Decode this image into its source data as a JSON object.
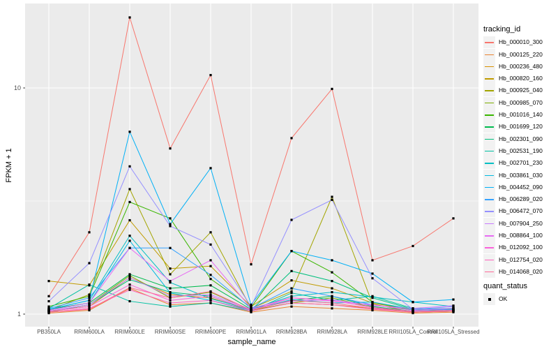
{
  "figure": {
    "background": "#FFFFFF",
    "panel_bg": "#EBEBEB",
    "grid_color": "#FFFFFF",
    "tick_color": "#333333",
    "tick_label_color": "#4D4D4D"
  },
  "legend": {
    "tracking_title": "tracking_id",
    "quant_title": "quant_status",
    "quant_items": [
      {
        "label": "OK",
        "marker": "black-square"
      }
    ]
  },
  "chart_data": {
    "type": "line",
    "title": "",
    "xlabel": "sample_name",
    "ylabel": "FPKM + 1",
    "yscale": "log10",
    "yticks": [
      1,
      10
    ],
    "ytick_labels": [
      "1",
      "10"
    ],
    "minor_ytick": 3.162,
    "ylim": [
      0.97,
      23.6
    ],
    "grid": true,
    "legend_position": "right",
    "point_marker": "filled-black-square",
    "x": [
      "PB350LA",
      "RRIM600LA",
      "RRIM600LE",
      "RRIM600SE",
      "RRIM600PE",
      "RRIM901LA",
      "RRIM928BA",
      "RRIM928LA",
      "RRIM928LE",
      "RRII105LA_Control",
      "RRII105LA_Stressed"
    ],
    "series": [
      {
        "name": "Hb_000010_300",
        "color": "#F8766D",
        "values": [
          1.2,
          2.3,
          20.5,
          5.4,
          11.4,
          1.66,
          6.0,
          9.9,
          1.73,
          2.0,
          2.65
        ]
      },
      {
        "name": "Hb_000125_220",
        "color": "#EA8331",
        "values": [
          1.01,
          1.04,
          1.3,
          1.1,
          1.12,
          1.02,
          1.08,
          1.06,
          1.04,
          1.01,
          1.02
        ]
      },
      {
        "name": "Hb_000236_480",
        "color": "#D89000",
        "values": [
          1.03,
          1.08,
          1.45,
          1.22,
          1.18,
          1.04,
          1.12,
          1.1,
          1.06,
          1.02,
          1.03
        ]
      },
      {
        "name": "Hb_000820_160",
        "color": "#C09B00",
        "values": [
          1.4,
          1.34,
          2.6,
          1.59,
          1.63,
          1.08,
          1.41,
          1.3,
          1.12,
          1.04,
          1.05
        ]
      },
      {
        "name": "Hb_000925_040",
        "color": "#A3A500",
        "values": [
          1.04,
          1.22,
          3.57,
          1.5,
          2.3,
          1.06,
          1.26,
          3.3,
          1.11,
          1.02,
          1.04
        ]
      },
      {
        "name": "Hb_000985_070",
        "color": "#7CAE00",
        "values": [
          1.02,
          1.1,
          1.48,
          1.18,
          1.25,
          1.04,
          1.12,
          1.18,
          1.07,
          1.02,
          1.03
        ]
      },
      {
        "name": "Hb_001016_140",
        "color": "#39B600",
        "values": [
          1.08,
          1.2,
          3.13,
          2.65,
          1.43,
          1.07,
          1.9,
          1.53,
          1.13,
          1.04,
          1.05
        ]
      },
      {
        "name": "Hb_001699_120",
        "color": "#00BB4E",
        "values": [
          1.05,
          1.12,
          1.5,
          1.3,
          1.34,
          1.05,
          1.15,
          1.2,
          1.08,
          1.03,
          1.04
        ]
      },
      {
        "name": "Hb_002301_090",
        "color": "#00BF7D",
        "values": [
          1.03,
          1.1,
          1.42,
          1.25,
          1.2,
          1.04,
          1.55,
          1.4,
          1.18,
          1.05,
          1.06
        ]
      },
      {
        "name": "Hb_002531_190",
        "color": "#00C1A3",
        "values": [
          1.06,
          1.35,
          1.14,
          1.08,
          1.12,
          1.03,
          1.24,
          1.15,
          1.2,
          1.06,
          1.05
        ]
      },
      {
        "name": "Hb_002701_230",
        "color": "#00BFC4",
        "values": [
          1.05,
          1.15,
          2.22,
          1.38,
          1.17,
          1.05,
          1.2,
          1.25,
          1.19,
          1.13,
          1.08
        ]
      },
      {
        "name": "Hb_003861_030",
        "color": "#00BAE0",
        "values": [
          1.04,
          1.12,
          2.11,
          1.24,
          1.15,
          1.04,
          1.16,
          1.12,
          1.13,
          1.05,
          1.06
        ]
      },
      {
        "name": "Hb_004452_090",
        "color": "#00B0F6",
        "values": [
          1.05,
          1.15,
          6.4,
          2.5,
          4.42,
          1.1,
          1.9,
          1.73,
          1.51,
          1.13,
          1.16
        ]
      },
      {
        "name": "Hb_006289_020",
        "color": "#35A2FF",
        "values": [
          1.06,
          1.18,
          1.96,
          1.96,
          1.49,
          1.06,
          1.3,
          1.2,
          1.1,
          1.04,
          1.05
        ]
      },
      {
        "name": "Hb_006472_070",
        "color": "#9590FF",
        "values": [
          1.14,
          1.68,
          4.5,
          2.45,
          2.03,
          1.08,
          2.61,
          3.2,
          1.44,
          1.05,
          1.08
        ]
      },
      {
        "name": "Hb_007904_250",
        "color": "#C77CFF",
        "values": [
          1.03,
          1.1,
          1.45,
          1.2,
          1.22,
          1.05,
          1.14,
          1.16,
          1.09,
          1.06,
          1.09
        ]
      },
      {
        "name": "Hb_008864_100",
        "color": "#E76BF3",
        "values": [
          1.04,
          1.12,
          1.96,
          1.4,
          1.73,
          1.06,
          1.18,
          1.14,
          1.1,
          1.04,
          1.06
        ]
      },
      {
        "name": "Hb_012092_100",
        "color": "#FA62DB",
        "values": [
          1.03,
          1.08,
          1.35,
          1.15,
          1.2,
          1.04,
          1.18,
          1.15,
          1.07,
          1.03,
          1.04
        ]
      },
      {
        "name": "Hb_012754_020",
        "color": "#FF62BC",
        "values": [
          1.02,
          1.06,
          1.28,
          1.12,
          1.15,
          1.03,
          1.12,
          1.1,
          1.05,
          1.02,
          1.03
        ]
      },
      {
        "name": "Hb_014068_020",
        "color": "#FF6A98",
        "values": [
          1.02,
          1.05,
          1.31,
          1.18,
          1.26,
          1.04,
          1.15,
          1.12,
          1.06,
          1.02,
          1.03
        ]
      }
    ]
  }
}
